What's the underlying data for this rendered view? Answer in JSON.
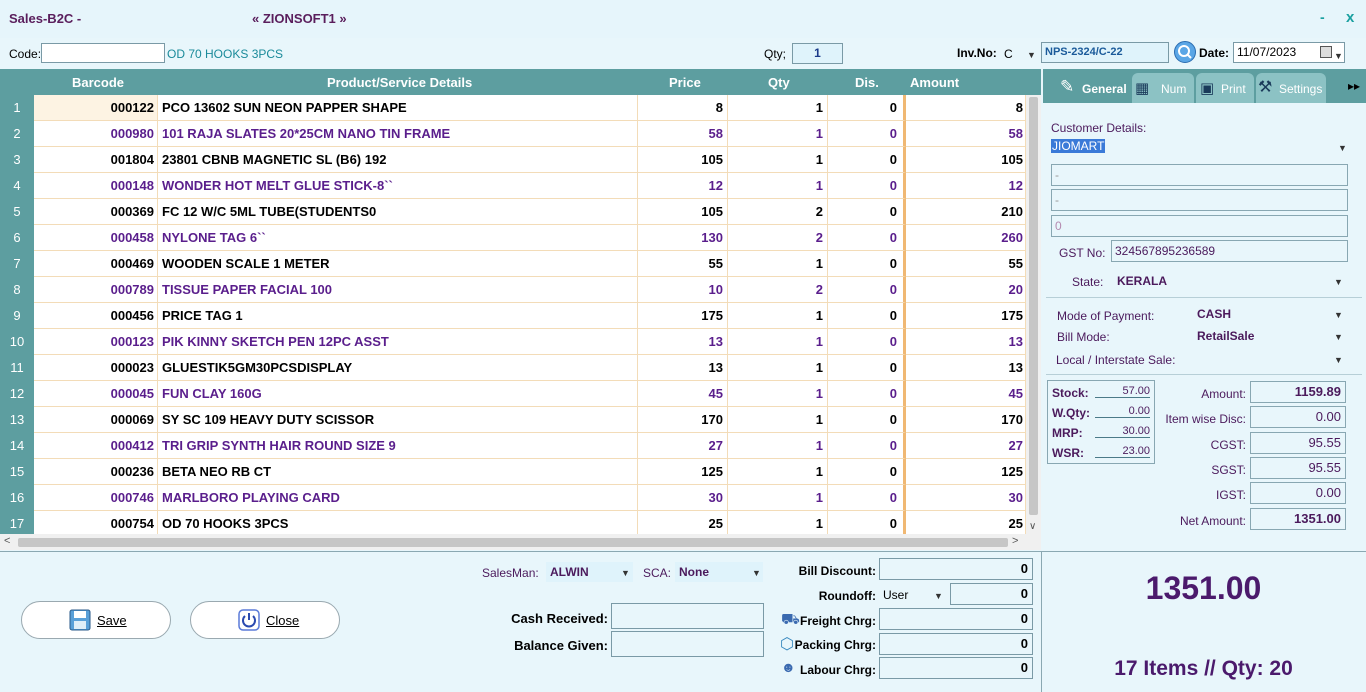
{
  "titlebar": {
    "title": "Sales-B2C -",
    "company": "« ZIONSOFT1 »",
    "minimize": "-",
    "close": "x"
  },
  "topbar": {
    "code_label": "Code:",
    "code_value": "",
    "code_product": "OD 70 HOOKS 3PCS",
    "qty_label": "Qty;",
    "qty_value": "1",
    "invno_label": "Inv.No:",
    "inv_prefix": "C",
    "inv_number": "NPS-2324/C-22",
    "date_label": "Date:",
    "date_value": "11/07/2023"
  },
  "grid": {
    "headers": {
      "barcode": "Barcode",
      "product": "Product/Service Details",
      "price": "Price",
      "qty": "Qty",
      "dis": "Dis.",
      "amount": "Amount"
    },
    "rows": [
      {
        "n": "1",
        "barcode": "000122",
        "product": "PCO 13602 SUN NEON PAPPER SHAPE",
        "price": "8",
        "qty": "1",
        "dis": "0",
        "amount": "8"
      },
      {
        "n": "2",
        "barcode": "000980",
        "product": "101 RAJA SLATES 20*25CM NANO TIN FRAME",
        "price": "58",
        "qty": "1",
        "dis": "0",
        "amount": "58"
      },
      {
        "n": "3",
        "barcode": "001804",
        "product": "23801 CBNB MAGNETIC SL (B6) 192",
        "price": "105",
        "qty": "1",
        "dis": "0",
        "amount": "105"
      },
      {
        "n": "4",
        "barcode": "000148",
        "product": "WONDER HOT MELT GLUE STICK-8``",
        "price": "12",
        "qty": "1",
        "dis": "0",
        "amount": "12"
      },
      {
        "n": "5",
        "barcode": "000369",
        "product": "FC 12 W/C 5ML TUBE(STUDENTS0",
        "price": "105",
        "qty": "2",
        "dis": "0",
        "amount": "210"
      },
      {
        "n": "6",
        "barcode": "000458",
        "product": "NYLONE TAG 6``",
        "price": "130",
        "qty": "2",
        "dis": "0",
        "amount": "260"
      },
      {
        "n": "7",
        "barcode": "000469",
        "product": "WOODEN SCALE 1 METER",
        "price": "55",
        "qty": "1",
        "dis": "0",
        "amount": "55"
      },
      {
        "n": "8",
        "barcode": "000789",
        "product": "TISSUE PAPER FACIAL 100",
        "price": "10",
        "qty": "2",
        "dis": "0",
        "amount": "20"
      },
      {
        "n": "9",
        "barcode": "000456",
        "product": "PRICE TAG 1",
        "price": "175",
        "qty": "1",
        "dis": "0",
        "amount": "175"
      },
      {
        "n": "10",
        "barcode": "000123",
        "product": "PIK KINNY SKETCH PEN 12PC ASST",
        "price": "13",
        "qty": "1",
        "dis": "0",
        "amount": "13"
      },
      {
        "n": "11",
        "barcode": "000023",
        "product": "GLUESTIK5GM30PCSDISPLAY",
        "price": "13",
        "qty": "1",
        "dis": "0",
        "amount": "13"
      },
      {
        "n": "12",
        "barcode": "000045",
        "product": "FUN CLAY 160G",
        "price": "45",
        "qty": "1",
        "dis": "0",
        "amount": "45"
      },
      {
        "n": "13",
        "barcode": "000069",
        "product": "SY SC 109 HEAVY DUTY SCISSOR",
        "price": "170",
        "qty": "1",
        "dis": "0",
        "amount": "170"
      },
      {
        "n": "14",
        "barcode": "000412",
        "product": "TRI GRIP SYNTH HAIR ROUND SIZE 9",
        "price": "27",
        "qty": "1",
        "dis": "0",
        "amount": "27"
      },
      {
        "n": "15",
        "barcode": "000236",
        "product": "BETA NEO RB CT",
        "price": "125",
        "qty": "1",
        "dis": "0",
        "amount": "125"
      },
      {
        "n": "16",
        "barcode": "000746",
        "product": "MARLBORO PLAYING CARD",
        "price": "30",
        "qty": "1",
        "dis": "0",
        "amount": "30"
      },
      {
        "n": "17",
        "barcode": "000754",
        "product": "OD 70 HOOKS 3PCS",
        "price": "25",
        "qty": "1",
        "dis": "0",
        "amount": "25"
      }
    ]
  },
  "tabs": {
    "general": "General",
    "num": "Num",
    "print": "Print",
    "settings": "Settings",
    "more": "▸▸"
  },
  "customer": {
    "label": "Customer Details:",
    "name": "JIOMART",
    "line1": "-",
    "line2": "-",
    "line3": "0",
    "gst_label": "GST No:",
    "gst_value": "324567895236589",
    "state_label": "State:",
    "state_value": "KERALA"
  },
  "payment": {
    "mode_label": "Mode of Payment:",
    "mode_value": "CASH",
    "bill_mode_label": "Bill Mode:",
    "bill_mode_value": "RetailSale",
    "local_label": "Local / Interstate Sale:",
    "local_value": ""
  },
  "stock": {
    "stock_label": "Stock:",
    "stock_value": "57.00",
    "wqty_label": "W.Qty:",
    "wqty_value": "0.00",
    "mrp_label": "MRP:",
    "mrp_value": "30.00",
    "wsr_label": "WSR:",
    "wsr_value": "23.00"
  },
  "summary": {
    "amount_label": "Amount:",
    "amount_value": "1159.89",
    "disc_label": "Item wise Disc:",
    "disc_value": "0.00",
    "cgst_label": "CGST:",
    "cgst_value": "95.55",
    "sgst_label": "SGST:",
    "sgst_value": "95.55",
    "igst_label": "IGST:",
    "igst_value": "0.00",
    "net_label": "Net Amount:",
    "net_value": "1351.00"
  },
  "bottom": {
    "save": "Save",
    "close": "Close",
    "salesman_label": "SalesMan:",
    "salesman_value": "ALWIN",
    "sca_label": "SCA:",
    "sca_value": "None",
    "cash_label": "Cash Received:",
    "cash_value": "",
    "balance_label": "Balance Given:",
    "balance_value": "",
    "bill_discount_label": "Bill Discount:",
    "bill_discount_value": "0",
    "roundoff_label": "Roundoff:",
    "roundoff_mode": "User",
    "roundoff_value": "0",
    "freight_label": "Freight Chrg:",
    "freight_value": "0",
    "packing_label": "Packing Chrg:",
    "packing_value": "0",
    "labour_label": "Labour Chrg:",
    "labour_value": "0"
  },
  "totals": {
    "grand_total": "1351.00",
    "items_summary": "17 Items //  Qty: 20"
  }
}
